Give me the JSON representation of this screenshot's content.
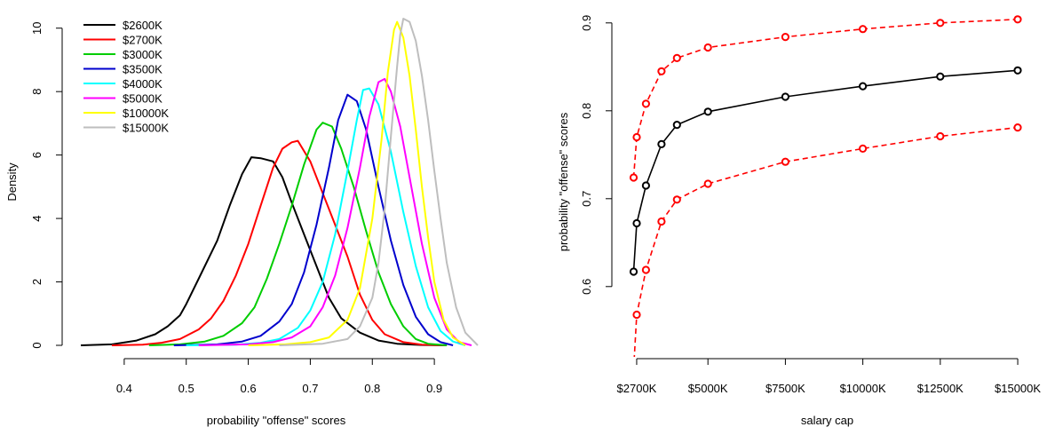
{
  "chart_data": [
    {
      "type": "line",
      "title": "",
      "xlabel": "probability \"offense\" scores",
      "ylabel": "Density",
      "xlim": [
        0.32,
        0.97
      ],
      "ylim": [
        0,
        10.3
      ],
      "xticks": [
        "0.4",
        "0.5",
        "0.6",
        "0.7",
        "0.8",
        "0.9"
      ],
      "xtick_values": [
        0.4,
        0.5,
        0.6,
        0.7,
        0.8,
        0.9
      ],
      "yticks": [
        "0",
        "2",
        "4",
        "6",
        "8",
        "10"
      ],
      "ytick_values": [
        0,
        2,
        4,
        6,
        8,
        10
      ],
      "grid": false,
      "legend_position": "top-left",
      "series": [
        {
          "name": "$2600K",
          "color": "#000000",
          "x": [
            0.33,
            0.38,
            0.42,
            0.45,
            0.47,
            0.49,
            0.5,
            0.52,
            0.55,
            0.57,
            0.59,
            0.605,
            0.62,
            0.64,
            0.655,
            0.67,
            0.69,
            0.71,
            0.73,
            0.75,
            0.78,
            0.81,
            0.84,
            0.88,
            0.92
          ],
          "y": [
            0,
            0.03,
            0.15,
            0.35,
            0.6,
            0.95,
            1.3,
            2.1,
            3.3,
            4.4,
            5.4,
            5.93,
            5.9,
            5.8,
            5.3,
            4.5,
            3.5,
            2.5,
            1.5,
            0.85,
            0.4,
            0.15,
            0.05,
            0.01,
            0
          ]
        },
        {
          "name": "$2700K",
          "color": "#ff0000",
          "x": [
            0.38,
            0.43,
            0.46,
            0.49,
            0.52,
            0.54,
            0.56,
            0.58,
            0.6,
            0.62,
            0.64,
            0.655,
            0.67,
            0.68,
            0.7,
            0.72,
            0.74,
            0.76,
            0.78,
            0.8,
            0.82,
            0.85,
            0.88,
            0.92
          ],
          "y": [
            0,
            0.02,
            0.08,
            0.2,
            0.5,
            0.85,
            1.4,
            2.2,
            3.2,
            4.4,
            5.6,
            6.2,
            6.4,
            6.45,
            5.8,
            4.8,
            3.8,
            2.8,
            1.6,
            0.8,
            0.35,
            0.1,
            0.02,
            0
          ]
        },
        {
          "name": "$3000K",
          "color": "#00cd00",
          "x": [
            0.44,
            0.49,
            0.53,
            0.56,
            0.59,
            0.61,
            0.63,
            0.65,
            0.67,
            0.69,
            0.71,
            0.72,
            0.735,
            0.75,
            0.77,
            0.79,
            0.81,
            0.83,
            0.85,
            0.87,
            0.89,
            0.92
          ],
          "y": [
            0,
            0.03,
            0.12,
            0.3,
            0.7,
            1.2,
            2.1,
            3.2,
            4.4,
            5.7,
            6.8,
            7.02,
            6.9,
            6.2,
            5.0,
            3.6,
            2.3,
            1.3,
            0.6,
            0.2,
            0.05,
            0
          ]
        },
        {
          "name": "$3500K",
          "color": "#0000cd",
          "x": [
            0.48,
            0.55,
            0.59,
            0.62,
            0.65,
            0.67,
            0.69,
            0.71,
            0.73,
            0.745,
            0.76,
            0.775,
            0.79,
            0.81,
            0.83,
            0.85,
            0.87,
            0.89,
            0.91,
            0.93
          ],
          "y": [
            0,
            0.03,
            0.12,
            0.3,
            0.75,
            1.3,
            2.3,
            3.8,
            5.6,
            7.1,
            7.9,
            7.7,
            6.8,
            5.0,
            3.3,
            1.9,
            0.9,
            0.35,
            0.1,
            0
          ]
        },
        {
          "name": "$4000K",
          "color": "#00ffff",
          "x": [
            0.5,
            0.58,
            0.62,
            0.65,
            0.68,
            0.7,
            0.72,
            0.74,
            0.76,
            0.775,
            0.785,
            0.795,
            0.81,
            0.83,
            0.85,
            0.87,
            0.89,
            0.91,
            0.93,
            0.95
          ],
          "y": [
            0,
            0.02,
            0.08,
            0.2,
            0.55,
            1.1,
            2.0,
            3.5,
            5.5,
            7.1,
            8.05,
            8.1,
            7.6,
            6.1,
            4.2,
            2.5,
            1.2,
            0.45,
            0.12,
            0
          ]
        },
        {
          "name": "$5000K",
          "color": "#ff00ff",
          "x": [
            0.52,
            0.6,
            0.64,
            0.67,
            0.7,
            0.72,
            0.74,
            0.76,
            0.78,
            0.795,
            0.81,
            0.82,
            0.83,
            0.845,
            0.86,
            0.88,
            0.9,
            0.92,
            0.94,
            0.96
          ],
          "y": [
            0,
            0.03,
            0.1,
            0.25,
            0.6,
            1.2,
            2.2,
            3.7,
            5.6,
            7.2,
            8.3,
            8.4,
            8.0,
            6.9,
            5.3,
            3.2,
            1.5,
            0.5,
            0.1,
            0
          ]
        },
        {
          "name": "$10000K",
          "color": "#ffff00",
          "x": [
            0.6,
            0.66,
            0.7,
            0.73,
            0.76,
            0.78,
            0.8,
            0.815,
            0.825,
            0.835,
            0.84,
            0.85,
            0.86,
            0.87,
            0.88,
            0.89,
            0.9,
            0.915,
            0.93,
            0.95
          ],
          "y": [
            0,
            0.03,
            0.1,
            0.25,
            0.8,
            1.8,
            4.0,
            6.5,
            8.6,
            9.95,
            10.2,
            9.7,
            8.5,
            6.8,
            5.0,
            3.4,
            2.0,
            0.8,
            0.25,
            0
          ]
        },
        {
          "name": "$15000K",
          "color": "#bebebe",
          "x": [
            0.65,
            0.72,
            0.76,
            0.78,
            0.8,
            0.81,
            0.82,
            0.83,
            0.84,
            0.845,
            0.85,
            0.86,
            0.87,
            0.88,
            0.89,
            0.9,
            0.91,
            0.92,
            0.935,
            0.95,
            0.97
          ],
          "y": [
            0,
            0.05,
            0.2,
            0.6,
            1.5,
            2.6,
            4.3,
            6.6,
            8.8,
            9.8,
            10.3,
            10.2,
            9.6,
            8.5,
            7.1,
            5.5,
            4.0,
            2.6,
            1.2,
            0.4,
            0
          ]
        }
      ]
    },
    {
      "type": "line",
      "title": "",
      "xlabel": "salary cap",
      "ylabel": "probability \"offense\" scores",
      "xlim": [
        2300,
        15400
      ],
      "ylim": [
        0.52,
        0.92
      ],
      "xticks": [
        "$2700K",
        "$5000K",
        "$7500K",
        "$10000K",
        "$12500K",
        "$15000K"
      ],
      "xtick_values": [
        2700,
        5000,
        7500,
        10000,
        12500,
        15000
      ],
      "yticks": [
        "0.6",
        "0.7",
        "0.8",
        "0.9"
      ],
      "ytick_values": [
        0.6,
        0.7,
        0.8,
        0.9
      ],
      "grid": false,
      "x": [
        2600,
        2700,
        3000,
        3500,
        4000,
        5000,
        7500,
        10000,
        12500,
        15000
      ],
      "series": [
        {
          "role": "estimate",
          "color": "#000000",
          "dashed": false,
          "values": [
            0.617,
            0.672,
            0.715,
            0.762,
            0.784,
            0.799,
            0.816,
            0.828,
            0.839,
            0.846
          ]
        },
        {
          "role": "upper",
          "color": "#ff0000",
          "dashed": true,
          "values": [
            0.724,
            0.77,
            0.808,
            0.845,
            0.86,
            0.872,
            0.884,
            0.893,
            0.9,
            0.904
          ]
        },
        {
          "role": "lower",
          "color": "#ff0000",
          "dashed": true,
          "values": [
            0.506,
            0.568,
            0.619,
            0.674,
            0.699,
            0.717,
            0.742,
            0.757,
            0.771,
            0.781
          ]
        }
      ]
    }
  ]
}
